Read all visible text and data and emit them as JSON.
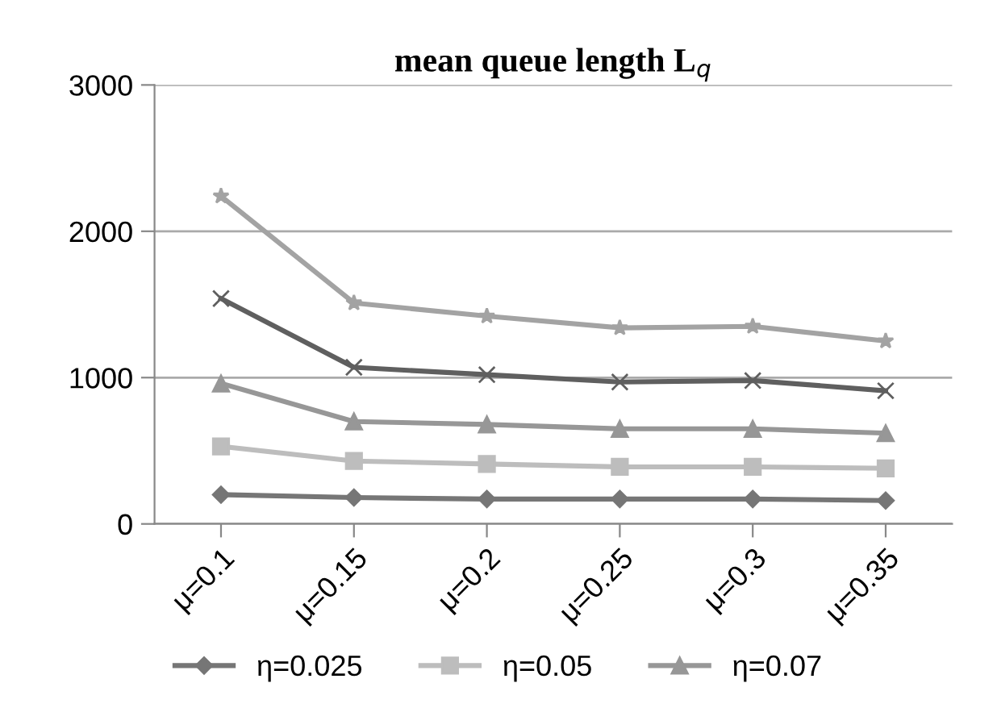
{
  "chart_data": {
    "type": "line",
    "title": "mean queue length L$_{q}$",
    "categories": [
      "μ=0.1",
      "μ=0.15",
      "μ=0.2",
      "μ=0.25",
      "μ=0.3",
      "μ=0.35"
    ],
    "series": [
      {
        "name": "η=0.025",
        "color": "#767676",
        "marker": "diamond",
        "values": [
          200,
          180,
          170,
          170,
          170,
          160
        ]
      },
      {
        "name": "η=0.05",
        "color": "#bdbdbd",
        "marker": "square",
        "values": [
          530,
          430,
          410,
          390,
          390,
          380
        ]
      },
      {
        "name": "η=0.07",
        "color": "#979797",
        "marker": "triangle",
        "values": [
          960,
          700,
          680,
          650,
          650,
          620
        ]
      },
      {
        "color": "#5f5f5f",
        "marker": "cross",
        "values": [
          1540,
          1070,
          1020,
          970,
          980,
          910
        ]
      },
      {
        "color": "#a3a3a3",
        "marker": "star",
        "values": [
          2240,
          1510,
          1420,
          1340,
          1350,
          1250
        ]
      }
    ],
    "ylim": [
      0,
      3000
    ],
    "yticks": [
      0,
      1000,
      2000,
      3000
    ],
    "grid": "y",
    "legend": "bottom",
    "line_style": "solid"
  }
}
